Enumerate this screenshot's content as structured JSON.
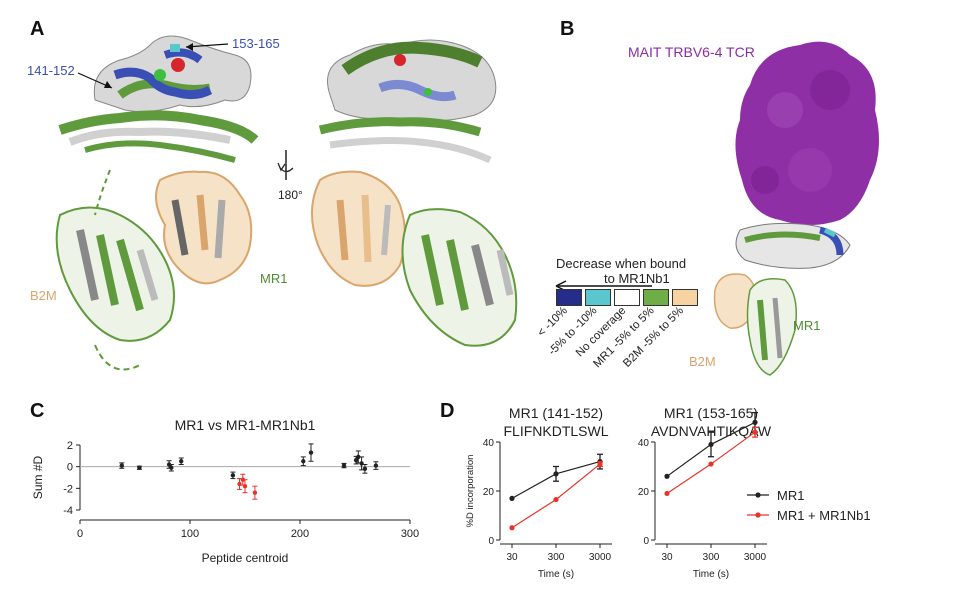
{
  "panels": {
    "a": {
      "letter": "A",
      "labels": {
        "r153_165": "153-165",
        "r141_152": "141-152",
        "rotation": "180°",
        "b2m": "B2M",
        "mr1": "MR1"
      }
    },
    "b": {
      "letter": "B",
      "labels": {
        "tcr": "MAIT TRBV6-4 TCR",
        "mr1": "MR1",
        "b2m": "B2M"
      },
      "legend": {
        "title_line1": "Decrease when bound",
        "title_line2": "to MR1Nb1",
        "items": [
          {
            "label": "< -10%",
            "color": "#262c8a"
          },
          {
            "label": "-5% to -10%",
            "color": "#5cc6cf"
          },
          {
            "label": "No coverage",
            "color": "#ffffff"
          },
          {
            "label": "MR1 -5% to 5%",
            "color": "#6fae46"
          },
          {
            "label": "B2M -5% to 5%",
            "color": "#f6d3a0"
          }
        ]
      }
    },
    "c": {
      "letter": "C"
    },
    "d": {
      "letter": "D"
    }
  },
  "colors": {
    "mr1_green": "#5f9a3c",
    "highlight_blue": "#3a4fb5",
    "b2m_tan": "#e8be8a",
    "tcr_purple": "#8e2fa6",
    "red": "#e8332a",
    "black": "#222222"
  },
  "chart_data": [
    {
      "type": "scatter",
      "title": "MR1 vs MR1-MR1Nb1",
      "xlabel": "Peptide centroid",
      "ylabel": "Sum #D",
      "xlim": [
        0,
        300
      ],
      "ylim": [
        -4,
        2
      ],
      "xticks": [
        0,
        100,
        200,
        300
      ],
      "yticks": [
        2,
        0,
        -2,
        -4
      ],
      "series": [
        {
          "color": "#222222",
          "points": [
            {
              "x": 38,
              "y": 0.1,
              "err": 0.25
            },
            {
              "x": 54,
              "y": -0.1,
              "err": 0.15
            },
            {
              "x": 81,
              "y": 0.2,
              "err": 0.35
            },
            {
              "x": 83,
              "y": -0.1,
              "err": 0.3
            },
            {
              "x": 92,
              "y": 0.5,
              "err": 0.3
            },
            {
              "x": 139,
              "y": -0.8,
              "err": 0.3
            },
            {
              "x": 203,
              "y": 0.5,
              "err": 0.4
            },
            {
              "x": 210,
              "y": 1.3,
              "err": 0.8
            },
            {
              "x": 240,
              "y": 0.1,
              "err": 0.2
            },
            {
              "x": 251,
              "y": 0.6,
              "err": 0.35
            },
            {
              "x": 253,
              "y": 0.9,
              "err": 0.55
            },
            {
              "x": 256,
              "y": 0.3,
              "err": 0.6
            },
            {
              "x": 259,
              "y": -0.2,
              "err": 0.4
            },
            {
              "x": 269,
              "y": 0.1,
              "err": 0.35
            }
          ]
        },
        {
          "color": "#e8332a",
          "points": [
            {
              "x": 145,
              "y": -1.6,
              "err": 0.5
            },
            {
              "x": 148,
              "y": -1.2,
              "err": 0.5
            },
            {
              "x": 150,
              "y": -1.8,
              "err": 0.6
            },
            {
              "x": 159,
              "y": -2.4,
              "err": 0.6
            }
          ]
        }
      ]
    },
    {
      "type": "line",
      "title": "MR1 (141-152)",
      "subtitle": "FLIFNKDTLSWL",
      "xlabel": "Time (s)",
      "ylabel": "%D incorporation",
      "x": [
        30,
        300,
        3000
      ],
      "xscale": "log",
      "ylim": [
        0,
        40
      ],
      "yticks": [
        0,
        20,
        40
      ],
      "series": [
        {
          "color": "#222222",
          "values": [
            17,
            27,
            32
          ],
          "err": [
            0,
            3,
            3
          ]
        },
        {
          "color": "#e8332a",
          "values": [
            5,
            16.5,
            31
          ],
          "err": [
            0,
            0,
            1
          ]
        }
      ]
    },
    {
      "type": "line",
      "title": "MR1 (153-165)",
      "subtitle": "AVDNVAHTIKQAW",
      "xlabel": "Time (s)",
      "ylabel": "",
      "x": [
        30,
        300,
        3000
      ],
      "xscale": "log",
      "ylim": [
        0,
        40
      ],
      "yticks": [
        0,
        20,
        40
      ],
      "legend_position": "bottom-right",
      "series": [
        {
          "name": "MR1",
          "color": "#222222",
          "values": [
            26,
            39,
            48
          ],
          "err": [
            0,
            5,
            4
          ]
        },
        {
          "name": "MR1 + MR1Nb1",
          "color": "#e8332a",
          "values": [
            19,
            31,
            44
          ],
          "err": [
            0,
            0,
            2
          ]
        }
      ]
    }
  ]
}
